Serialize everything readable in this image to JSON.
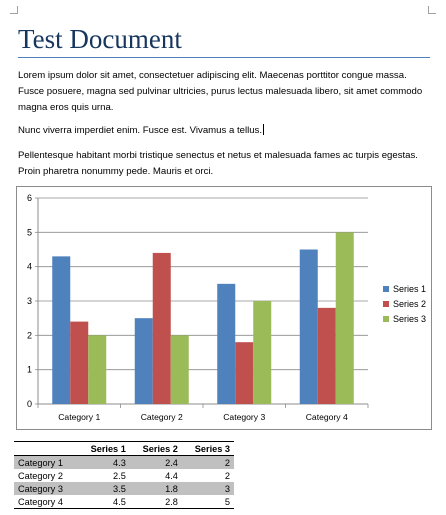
{
  "document": {
    "title": "Test Document",
    "paragraphs": [
      "Lorem ipsum dolor sit amet, consectetuer adipiscing elit.  Maecenas porttitor congue massa. Fusce posuere, magna sed pulvinar ultricies, purus lectus malesuada libero, sit amet commodo magna eros quis urna.",
      "Nunc viverra imperdiet enim. Fusce est. Vivamus a tellus.",
      "Pellentesque habitant morbi tristique senectus et netus et malesuada fames ac turpis egestas. Proin pharetra nonummy pede. Mauris et orci."
    ]
  },
  "chart_data": {
    "type": "bar",
    "categories": [
      "Category 1",
      "Category 2",
      "Category 3",
      "Category 4"
    ],
    "series": [
      {
        "name": "Series 1",
        "values": [
          4.3,
          2.5,
          3.5,
          4.5
        ],
        "color": "#4f81bd"
      },
      {
        "name": "Series 2",
        "values": [
          2.4,
          4.4,
          1.8,
          2.8
        ],
        "color": "#c0504d"
      },
      {
        "name": "Series 3",
        "values": [
          2,
          2,
          3,
          5
        ],
        "color": "#9bbb59"
      }
    ],
    "ylim": [
      0,
      6
    ],
    "yticks": [
      "0",
      "1",
      "2",
      "3",
      "4",
      "5",
      "6"
    ],
    "grid": true,
    "legend": "right"
  },
  "table": {
    "headers": [
      "",
      "Series 1",
      "Series 2",
      "Series 3"
    ],
    "rows": [
      [
        "Category 1",
        "4.3",
        "2.4",
        "2"
      ],
      [
        "Category 2",
        "2.5",
        "4.4",
        "2"
      ],
      [
        "Category 3",
        "3.5",
        "1.8",
        "3"
      ],
      [
        "Category 4",
        "4.5",
        "2.8",
        "5"
      ]
    ]
  }
}
